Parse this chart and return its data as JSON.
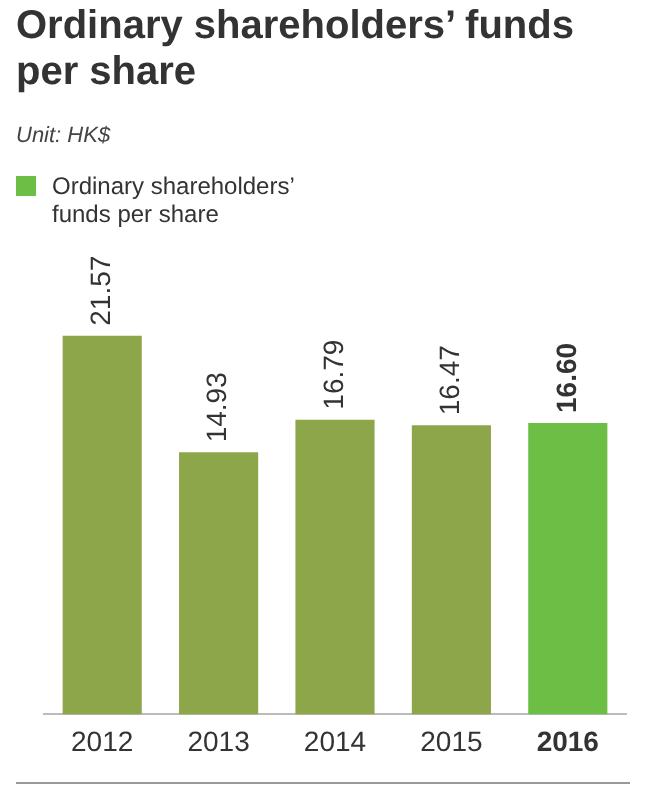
{
  "chart_data": {
    "type": "bar",
    "title": "Ordinary shareholders’ funds per share",
    "annotations": [
      "Unit: HK$"
    ],
    "categories": [
      "2012",
      "2013",
      "2014",
      "2015",
      "2016"
    ],
    "series": [
      {
        "name": "Ordinary shareholders’ funds per share",
        "color": "#6cbf44",
        "values": [
          21.57,
          14.93,
          16.79,
          16.47,
          16.6
        ],
        "value_labels": [
          "21.57",
          "14.93",
          "16.79",
          "16.47",
          "16.60"
        ],
        "colors": [
          "#8ea64a",
          "#8ea64a",
          "#8ea64a",
          "#8ea64a",
          "#6cbf44"
        ]
      }
    ],
    "legend": "top left",
    "grid": false
  }
}
